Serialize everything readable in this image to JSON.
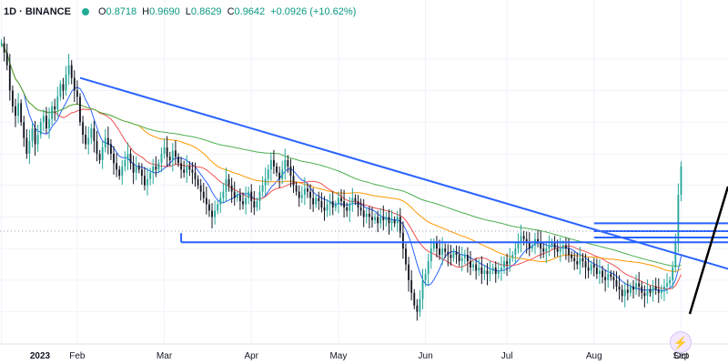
{
  "legend": {
    "symbol": "1D · BINANCE",
    "open_key": "O",
    "open": "0.8718",
    "high_key": "H",
    "high": "0.9690",
    "low_key": "L",
    "low": "0.8629",
    "close_key": "C",
    "close": "0.9642",
    "change": "+0.0926 (+10.62%)"
  },
  "time_axis": {
    "labels": [
      {
        "text": "2023",
        "kind": "year"
      },
      {
        "text": "Feb",
        "kind": "month"
      },
      {
        "text": "Mar",
        "kind": "month"
      },
      {
        "text": "Apr",
        "kind": "month"
      },
      {
        "text": "May",
        "kind": "month"
      },
      {
        "text": "Jun",
        "kind": "month"
      },
      {
        "text": "Jul",
        "kind": "month"
      },
      {
        "text": "Aug",
        "kind": "month"
      },
      {
        "text": "Sep",
        "kind": "month"
      },
      {
        "text": "Oct",
        "kind": "month"
      }
    ]
  },
  "colors": {
    "up": "#26a69a",
    "down": "#131722",
    "grid": "#f0f3fa",
    "ma_fast": "#2962ff",
    "ma_mid": "#ef5350",
    "ma_slow": "#ff9800",
    "ma_long": "#4caf50",
    "trendline": "#2962ff",
    "highlight": "#ffb74d"
  },
  "chart_data": {
    "type": "candlestick",
    "x_range": [
      "2023-01-01",
      "2023-10-05"
    ],
    "grid": true,
    "y_axis_visible": false,
    "series": [
      {
        "kind": "candles",
        "close": [
          1.35,
          1.32,
          1.28,
          1.2,
          1.15,
          1.12,
          1.16,
          1.1,
          1.05,
          1.0,
          1.04,
          1.08,
          1.03,
          1.06,
          1.1,
          1.12,
          1.08,
          1.11,
          1.15,
          1.14,
          1.18,
          1.22,
          1.2,
          1.25,
          1.28,
          1.24,
          1.2,
          1.18,
          1.1,
          1.06,
          1.03,
          1.05,
          1.08,
          1.04,
          1.0,
          0.98,
          1.02,
          1.05,
          1.03,
          1.0,
          0.97,
          0.95,
          0.93,
          0.96,
          0.98,
          1.0,
          0.97,
          0.94,
          0.96,
          0.95,
          0.93,
          0.9,
          0.92,
          0.94,
          0.96,
          0.95,
          0.97,
          1.0,
          1.02,
          0.99,
          0.98,
          1.01,
          0.99,
          0.97,
          0.95,
          0.94,
          0.96,
          0.95,
          0.94,
          0.92,
          0.9,
          0.88,
          0.86,
          0.84,
          0.82,
          0.8,
          0.82,
          0.84,
          0.86,
          0.88,
          0.92,
          0.9,
          0.88,
          0.86,
          0.87,
          0.85,
          0.84,
          0.86,
          0.88,
          0.85,
          0.83,
          0.85,
          0.88,
          0.9,
          0.92,
          0.95,
          0.98,
          0.96,
          0.94,
          0.92,
          0.95,
          0.98,
          0.96,
          0.93,
          0.9,
          0.88,
          0.86,
          0.87,
          0.89,
          0.88,
          0.86,
          0.84,
          0.86,
          0.85,
          0.83,
          0.82,
          0.84,
          0.85,
          0.83,
          0.84,
          0.86,
          0.85,
          0.83,
          0.82,
          0.84,
          0.86,
          0.85,
          0.83,
          0.82,
          0.8,
          0.81,
          0.8,
          0.79,
          0.8,
          0.78,
          0.8,
          0.79,
          0.8,
          0.78,
          0.79,
          0.78,
          0.8,
          0.75,
          0.7,
          0.65,
          0.6,
          0.56,
          0.52,
          0.5,
          0.54,
          0.6,
          0.62,
          0.66,
          0.7,
          0.72,
          0.7,
          0.68,
          0.7,
          0.69,
          0.68,
          0.67,
          0.69,
          0.68,
          0.66,
          0.67,
          0.68,
          0.66,
          0.64,
          0.65,
          0.63,
          0.64,
          0.62,
          0.63,
          0.62,
          0.63,
          0.64,
          0.62,
          0.63,
          0.64,
          0.66,
          0.65,
          0.67,
          0.68,
          0.7,
          0.72,
          0.74,
          0.73,
          0.72,
          0.7,
          0.71,
          0.73,
          0.72,
          0.7,
          0.69,
          0.7,
          0.71,
          0.72,
          0.7,
          0.69,
          0.7,
          0.71,
          0.7,
          0.68,
          0.67,
          0.66,
          0.65,
          0.67,
          0.66,
          0.64,
          0.63,
          0.65,
          0.64,
          0.62,
          0.63,
          0.61,
          0.6,
          0.62,
          0.61,
          0.6,
          0.58,
          0.57,
          0.55,
          0.57,
          0.56,
          0.58,
          0.57,
          0.59,
          0.58,
          0.56,
          0.55,
          0.57,
          0.56,
          0.58,
          0.57,
          0.56,
          0.57,
          0.58,
          0.59,
          0.6,
          0.64,
          0.72,
          0.87,
          0.96
        ]
      },
      {
        "kind": "ma",
        "name": "",
        "color_key": "ma_fast"
      },
      {
        "kind": "ma",
        "name": "",
        "color_key": "ma_mid"
      },
      {
        "kind": "ma",
        "name": "",
        "color_key": "ma_slow"
      },
      {
        "kind": "ma",
        "name": "",
        "color_key": "ma_long"
      }
    ],
    "drawings": {
      "descending_trendline": {
        "from_date": "2023-01-29",
        "from_price": 1.24,
        "to_date": "2023-10-31",
        "to_price": 0.52
      },
      "horizontal_levels": [
        0.72,
        0.735,
        0.755,
        0.78
      ],
      "highlight_circle_at": {
        "date": "2023-09-28",
        "price": 0.76
      }
    }
  }
}
